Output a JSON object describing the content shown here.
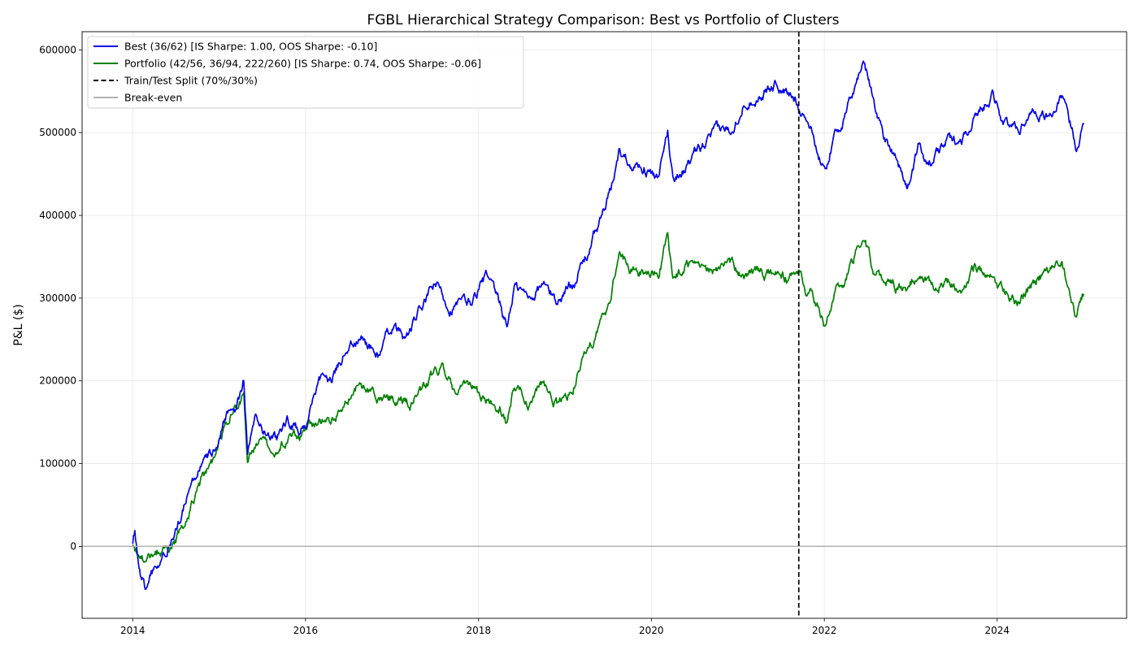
{
  "chart_data": {
    "type": "line",
    "title": "FGBL Hierarchical Strategy Comparison: Best vs Portfolio of Clusters",
    "xlabel": "",
    "ylabel": "P&L ($)",
    "x_type": "date",
    "xlim": [
      "2013-06-01",
      "2025-07-01"
    ],
    "ylim": [
      -87000,
      622000
    ],
    "xticks": [
      "2014",
      "2016",
      "2018",
      "2020",
      "2022",
      "2024"
    ],
    "yticks": [
      "0",
      "100000",
      "200000",
      "300000",
      "400000",
      "500000",
      "600000"
    ],
    "grid": true,
    "legend_position": "upper-left",
    "split": {
      "label": "Train/Test Split (70%/30%)",
      "date": "2021-09-15",
      "color": "#000000"
    },
    "break_even": {
      "label": "Break-even",
      "value": 0,
      "color": "#b0b0b0"
    },
    "series": [
      {
        "name": "Best (36/62) [IS Sharpe: 1.00, OOS Sharpe: -0.10]",
        "color": "#0000ee",
        "points": [
          [
            "2014-01-01",
            3000
          ],
          [
            "2014-01-10",
            10000
          ],
          [
            "2014-02-05",
            -40000
          ],
          [
            "2014-02-25",
            -53000
          ],
          [
            "2014-03-20",
            -35000
          ],
          [
            "2014-05-01",
            -20000
          ],
          [
            "2014-06-01",
            5000
          ],
          [
            "2014-07-15",
            25000
          ],
          [
            "2014-09-01",
            70000
          ],
          [
            "2014-10-01",
            90000
          ],
          [
            "2014-12-01",
            110000
          ],
          [
            "2015-01-15",
            150000
          ],
          [
            "2015-02-15",
            172000
          ],
          [
            "2015-03-15",
            168000
          ],
          [
            "2015-04-15",
            202000
          ],
          [
            "2015-05-01",
            115000
          ],
          [
            "2015-06-01",
            150000
          ],
          [
            "2015-07-15",
            140000
          ],
          [
            "2015-09-01",
            125000
          ],
          [
            "2015-10-15",
            150000
          ],
          [
            "2015-12-01",
            140000
          ],
          [
            "2016-01-01",
            148000
          ],
          [
            "2016-03-01",
            195000
          ],
          [
            "2016-05-01",
            205000
          ],
          [
            "2016-07-01",
            245000
          ],
          [
            "2016-09-01",
            250000
          ],
          [
            "2016-11-01",
            230000
          ],
          [
            "2017-01-01",
            265000
          ],
          [
            "2017-03-01",
            250000
          ],
          [
            "2017-05-01",
            285000
          ],
          [
            "2017-07-01",
            318000
          ],
          [
            "2017-09-01",
            290000
          ],
          [
            "2017-12-01",
            295000
          ],
          [
            "2018-02-01",
            325000
          ],
          [
            "2018-04-01",
            290000
          ],
          [
            "2018-05-01",
            265000
          ],
          [
            "2018-06-01",
            315000
          ],
          [
            "2018-08-01",
            300000
          ],
          [
            "2018-10-01",
            318000
          ],
          [
            "2018-12-01",
            295000
          ],
          [
            "2019-02-01",
            320000
          ],
          [
            "2019-04-01",
            350000
          ],
          [
            "2019-06-01",
            395000
          ],
          [
            "2019-07-15",
            430000
          ],
          [
            "2019-08-20",
            480000
          ],
          [
            "2019-10-01",
            465000
          ],
          [
            "2019-12-01",
            460000
          ],
          [
            "2020-02-01",
            440000
          ],
          [
            "2020-03-10",
            500000
          ],
          [
            "2020-04-01",
            445000
          ],
          [
            "2020-06-01",
            460000
          ],
          [
            "2020-08-01",
            480000
          ],
          [
            "2020-10-01",
            500000
          ],
          [
            "2020-12-01",
            505000
          ],
          [
            "2021-02-01",
            540000
          ],
          [
            "2021-04-01",
            545000
          ],
          [
            "2021-06-15",
            560000
          ],
          [
            "2021-08-01",
            545000
          ],
          [
            "2021-09-15",
            535000
          ],
          [
            "2021-11-01",
            510000
          ],
          [
            "2022-01-01",
            452000
          ],
          [
            "2022-02-15",
            500000
          ],
          [
            "2022-04-01",
            520000
          ],
          [
            "2022-06-15",
            588000
          ],
          [
            "2022-08-01",
            535000
          ],
          [
            "2022-09-15",
            490000
          ],
          [
            "2022-11-01",
            475000
          ],
          [
            "2022-12-15",
            432000
          ],
          [
            "2023-02-01",
            480000
          ],
          [
            "2023-04-01",
            465000
          ],
          [
            "2023-06-01",
            490000
          ],
          [
            "2023-08-01",
            490000
          ],
          [
            "2023-10-01",
            520000
          ],
          [
            "2023-12-15",
            550000
          ],
          [
            "2024-02-01",
            510000
          ],
          [
            "2024-04-01",
            505000
          ],
          [
            "2024-06-01",
            530000
          ],
          [
            "2024-08-01",
            520000
          ],
          [
            "2024-10-01",
            540000
          ],
          [
            "2024-12-01",
            485000
          ],
          [
            "2025-01-01",
            510000
          ]
        ]
      },
      {
        "name": "Portfolio (42/56, 36/94, 222/260) [IS Sharpe: 0.74, OOS Sharpe: -0.06]",
        "color": "#008000",
        "points": [
          [
            "2014-01-01",
            2000
          ],
          [
            "2014-02-15",
            -15000
          ],
          [
            "2014-04-01",
            -10000
          ],
          [
            "2014-06-01",
            2000
          ],
          [
            "2014-08-01",
            20000
          ],
          [
            "2014-10-01",
            70000
          ],
          [
            "2014-12-01",
            100000
          ],
          [
            "2015-02-01",
            150000
          ],
          [
            "2015-04-15",
            185000
          ],
          [
            "2015-05-01",
            105000
          ],
          [
            "2015-06-01",
            125000
          ],
          [
            "2015-08-01",
            118000
          ],
          [
            "2015-10-01",
            125000
          ],
          [
            "2015-12-01",
            135000
          ],
          [
            "2016-02-01",
            145000
          ],
          [
            "2016-04-01",
            150000
          ],
          [
            "2016-06-01",
            165000
          ],
          [
            "2016-08-01",
            190000
          ],
          [
            "2016-10-01",
            185000
          ],
          [
            "2016-12-01",
            180000
          ],
          [
            "2017-02-01",
            178000
          ],
          [
            "2017-04-01",
            175000
          ],
          [
            "2017-06-01",
            200000
          ],
          [
            "2017-08-01",
            218000
          ],
          [
            "2017-10-01",
            185000
          ],
          [
            "2017-12-01",
            195000
          ],
          [
            "2018-02-01",
            175000
          ],
          [
            "2018-04-01",
            170000
          ],
          [
            "2018-05-01",
            145000
          ],
          [
            "2018-06-01",
            195000
          ],
          [
            "2018-08-01",
            175000
          ],
          [
            "2018-10-01",
            200000
          ],
          [
            "2018-12-01",
            170000
          ],
          [
            "2019-02-01",
            190000
          ],
          [
            "2019-04-01",
            230000
          ],
          [
            "2019-06-01",
            270000
          ],
          [
            "2019-07-15",
            300000
          ],
          [
            "2019-08-20",
            360000
          ],
          [
            "2019-10-01",
            335000
          ],
          [
            "2019-12-01",
            328000
          ],
          [
            "2020-02-01",
            330000
          ],
          [
            "2020-03-10",
            375000
          ],
          [
            "2020-04-01",
            320000
          ],
          [
            "2020-06-01",
            338000
          ],
          [
            "2020-08-01",
            330000
          ],
          [
            "2020-10-01",
            335000
          ],
          [
            "2020-12-01",
            340000
          ],
          [
            "2021-02-01",
            330000
          ],
          [
            "2021-04-01",
            330000
          ],
          [
            "2021-06-15",
            325000
          ],
          [
            "2021-08-01",
            325000
          ],
          [
            "2021-09-15",
            320000
          ],
          [
            "2021-11-01",
            305000
          ],
          [
            "2022-01-01",
            270000
          ],
          [
            "2022-02-15",
            310000
          ],
          [
            "2022-04-01",
            320000
          ],
          [
            "2022-06-15",
            380000
          ],
          [
            "2022-08-01",
            330000
          ],
          [
            "2022-09-15",
            320000
          ],
          [
            "2022-11-01",
            315000
          ],
          [
            "2022-12-15",
            305000
          ],
          [
            "2023-02-01",
            335000
          ],
          [
            "2023-04-01",
            310000
          ],
          [
            "2023-06-01",
            325000
          ],
          [
            "2023-08-01",
            310000
          ],
          [
            "2023-10-01",
            340000
          ],
          [
            "2023-12-15",
            320000
          ],
          [
            "2024-02-01",
            305000
          ],
          [
            "2024-04-01",
            295000
          ],
          [
            "2024-06-01",
            320000
          ],
          [
            "2024-08-01",
            330000
          ],
          [
            "2024-10-01",
            340000
          ],
          [
            "2024-12-01",
            278000
          ],
          [
            "2025-01-01",
            305000
          ]
        ]
      }
    ]
  }
}
